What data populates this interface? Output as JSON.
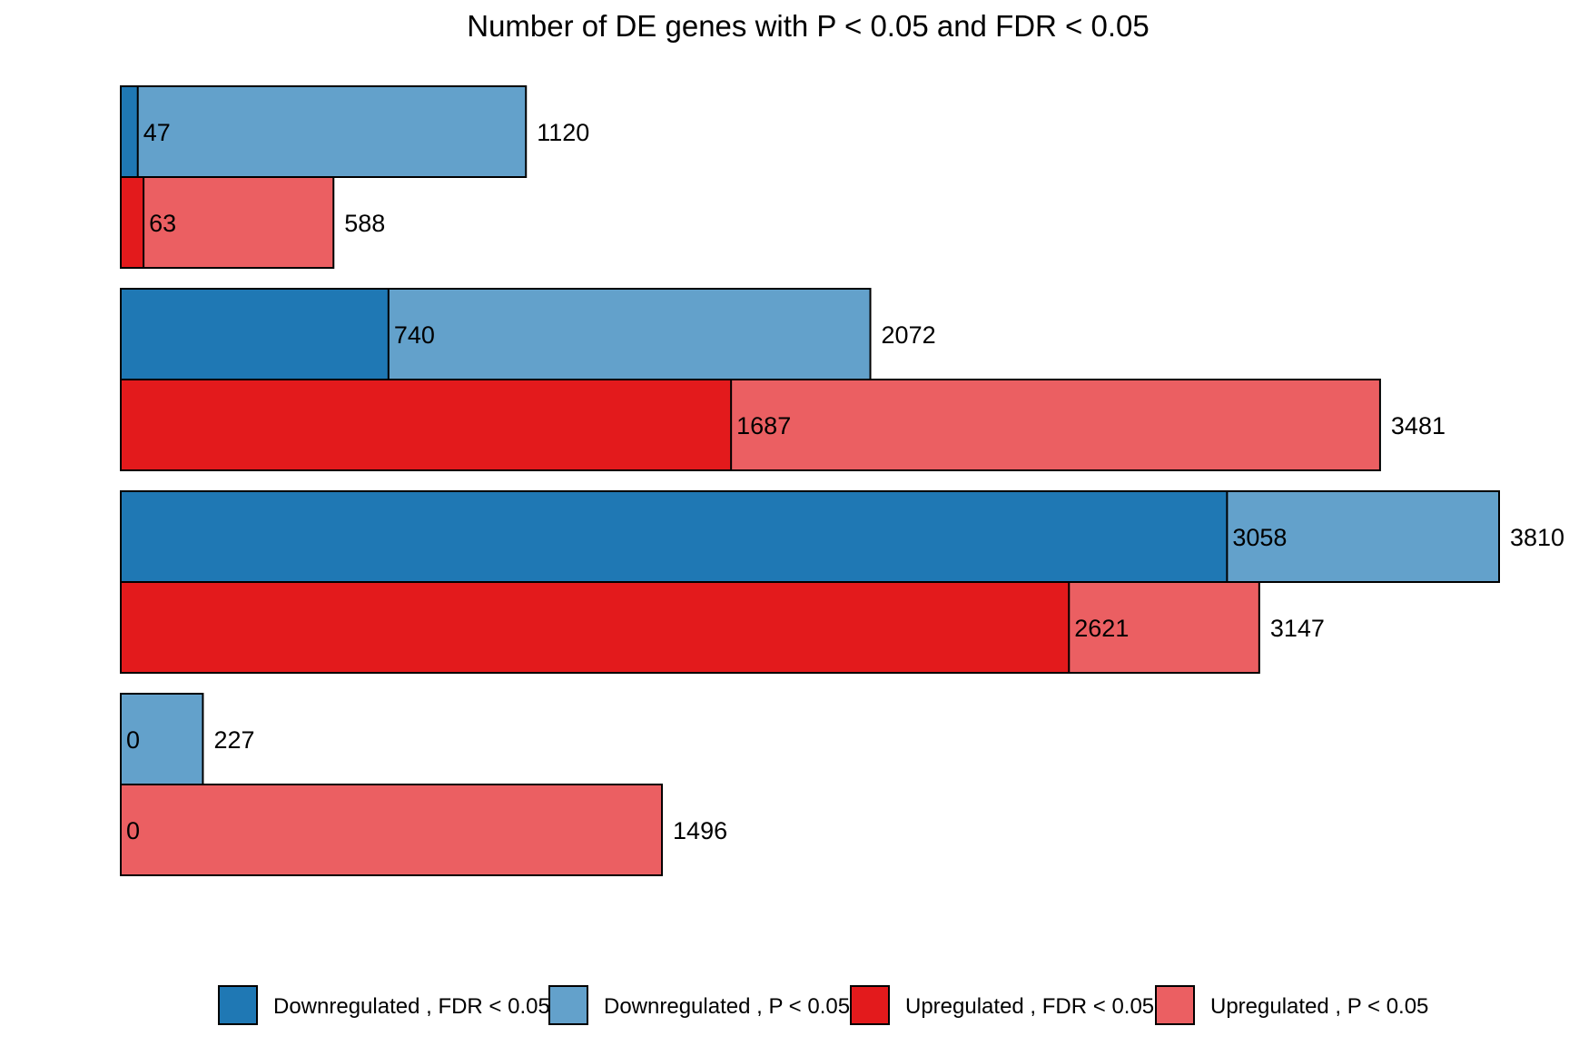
{
  "chart_data": {
    "type": "bar",
    "orientation": "horizontal",
    "stacking": "overlay",
    "title": "Number of DE genes with P < 0.05 and FDR < 0.05",
    "xlabel": "",
    "ylabel": "",
    "xlim": [
      0,
      3810
    ],
    "grid": false,
    "legend_position": "bottom",
    "groups": [
      {
        "bars": [
          {
            "direction": "Downregulated",
            "fdr": 47,
            "p": 1120
          },
          {
            "direction": "Upregulated",
            "fdr": 63,
            "p": 588
          }
        ]
      },
      {
        "bars": [
          {
            "direction": "Downregulated",
            "fdr": 740,
            "p": 2072
          },
          {
            "direction": "Upregulated",
            "fdr": 1687,
            "p": 3481
          }
        ]
      },
      {
        "bars": [
          {
            "direction": "Downregulated",
            "fdr": 3058,
            "p": 3810
          },
          {
            "direction": "Upregulated",
            "fdr": 2621,
            "p": 3147
          }
        ]
      },
      {
        "bars": [
          {
            "direction": "Downregulated",
            "fdr": 0,
            "p": 227
          },
          {
            "direction": "Upregulated",
            "fdr": 0,
            "p": 1496
          }
        ]
      }
    ],
    "legend": [
      {
        "label": "Downregulated , FDR < 0.05",
        "color": "#1f78b4"
      },
      {
        "label": "Downregulated , P < 0.05",
        "color": "#63a1cb"
      },
      {
        "label": "Upregulated , FDR < 0.05",
        "color": "#e31a1c"
      },
      {
        "label": "Upregulated , P < 0.05",
        "color": "#eb5f62"
      }
    ],
    "colors": {
      "down_fdr": "#1f78b4",
      "down_p": "#63a1cb",
      "up_fdr": "#e31a1c",
      "up_p": "#eb5f62"
    }
  }
}
